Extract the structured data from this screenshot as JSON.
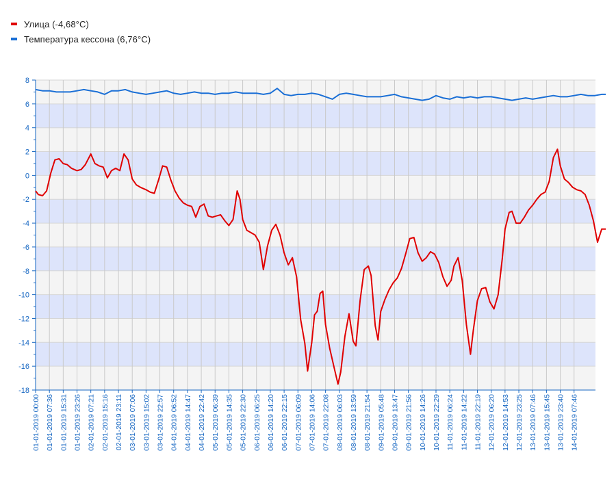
{
  "legend": [
    {
      "label": "Улица (-4,68°C)",
      "color": "#e00000"
    },
    {
      "label": "Температура кессона (6,76°C)",
      "color": "#1a6fd6"
    }
  ],
  "chart_data": {
    "type": "line",
    "ylim": [
      -18,
      8
    ],
    "y_ticks": [
      8,
      6,
      4,
      2,
      0,
      -2,
      -4,
      -6,
      -8,
      -10,
      -12,
      -14,
      -16,
      -18
    ],
    "x_tick_labels": [
      "01-01-2019 00:00",
      "01-01-2019 07:36",
      "01-01-2019 15:31",
      "01-01-2019 23:26",
      "02-01-2019 07:21",
      "02-01-2019 15:16",
      "02-01-2019 23:11",
      "03-01-2019 07:06",
      "03-01-2019 15:02",
      "03-01-2019 22:57",
      "04-01-2019 06:52",
      "04-01-2019 14:47",
      "04-01-2019 22:42",
      "05-01-2019 06:39",
      "05-01-2019 14:35",
      "05-01-2019 22:30",
      "06-01-2019 06:25",
      "06-01-2019 14:20",
      "06-01-2019 22:15",
      "07-01-2019 06:09",
      "07-01-2019 14:06",
      "07-01-2019 22:08",
      "08-01-2019 06:03",
      "08-01-2019 13:59",
      "08-01-2019 21:54",
      "09-01-2019 05:48",
      "09-01-2019 13:47",
      "09-01-2019 21:56",
      "10-01-2019 14:26",
      "10-01-2019 22:29",
      "11-01-2019 06:24",
      "11-01-2019 14:22",
      "11-01-2019 22:19",
      "12-01-2019 06:20",
      "12-01-2019 14:53",
      "12-01-2019 23:25",
      "13-01-2019 07:46",
      "13-01-2019 15:45",
      "13-01-2019 23:40",
      "14-01-2019 07:46"
    ],
    "grid": true,
    "series": [
      {
        "name": "Улица (-4,68°C)",
        "color": "#e00000",
        "points": [
          [
            0,
            -1.3
          ],
          [
            0.2,
            -1.6
          ],
          [
            0.5,
            -1.7
          ],
          [
            0.8,
            -1.3
          ],
          [
            1.1,
            0.2
          ],
          [
            1.4,
            1.3
          ],
          [
            1.7,
            1.4
          ],
          [
            2.0,
            1.0
          ],
          [
            2.3,
            0.9
          ],
          [
            2.6,
            0.6
          ],
          [
            3.0,
            0.4
          ],
          [
            3.3,
            0.5
          ],
          [
            3.6,
            0.9
          ],
          [
            4.0,
            1.8
          ],
          [
            4.3,
            1.0
          ],
          [
            4.6,
            0.8
          ],
          [
            4.9,
            0.7
          ],
          [
            5.2,
            -0.2
          ],
          [
            5.5,
            0.4
          ],
          [
            5.8,
            0.6
          ],
          [
            6.1,
            0.4
          ],
          [
            6.4,
            1.8
          ],
          [
            6.7,
            1.3
          ],
          [
            7.0,
            -0.3
          ],
          [
            7.3,
            -0.8
          ],
          [
            7.6,
            -1.0
          ],
          [
            8.0,
            -1.2
          ],
          [
            8.3,
            -1.4
          ],
          [
            8.6,
            -1.5
          ],
          [
            8.9,
            -0.4
          ],
          [
            9.2,
            0.8
          ],
          [
            9.5,
            0.7
          ],
          [
            9.8,
            -0.4
          ],
          [
            10.1,
            -1.3
          ],
          [
            10.4,
            -1.9
          ],
          [
            10.7,
            -2.3
          ],
          [
            11.0,
            -2.5
          ],
          [
            11.3,
            -2.6
          ],
          [
            11.6,
            -3.5
          ],
          [
            11.9,
            -2.6
          ],
          [
            12.2,
            -2.4
          ],
          [
            12.5,
            -3.4
          ],
          [
            12.8,
            -3.5
          ],
          [
            13.1,
            -3.4
          ],
          [
            13.4,
            -3.3
          ],
          [
            13.7,
            -3.8
          ],
          [
            14.0,
            -4.2
          ],
          [
            14.3,
            -3.7
          ],
          [
            14.6,
            -1.3
          ],
          [
            14.8,
            -2.0
          ],
          [
            15.0,
            -3.7
          ],
          [
            15.3,
            -4.6
          ],
          [
            15.6,
            -4.8
          ],
          [
            15.9,
            -5.0
          ],
          [
            16.2,
            -5.6
          ],
          [
            16.5,
            -7.9
          ],
          [
            16.8,
            -5.9
          ],
          [
            17.1,
            -4.6
          ],
          [
            17.4,
            -4.1
          ],
          [
            17.7,
            -5.0
          ],
          [
            18.0,
            -6.5
          ],
          [
            18.3,
            -7.5
          ],
          [
            18.6,
            -6.9
          ],
          [
            18.9,
            -8.5
          ],
          [
            19.2,
            -12.1
          ],
          [
            19.5,
            -14.1
          ],
          [
            19.7,
            -16.4
          ],
          [
            20.0,
            -14.0
          ],
          [
            20.2,
            -11.7
          ],
          [
            20.4,
            -11.4
          ],
          [
            20.6,
            -9.9
          ],
          [
            20.8,
            -9.7
          ],
          [
            21.0,
            -12.5
          ],
          [
            21.3,
            -14.5
          ],
          [
            21.6,
            -16.0
          ],
          [
            21.9,
            -17.5
          ],
          [
            22.1,
            -16.5
          ],
          [
            22.4,
            -13.5
          ],
          [
            22.7,
            -11.6
          ],
          [
            23.0,
            -13.9
          ],
          [
            23.2,
            -14.3
          ],
          [
            23.5,
            -10.5
          ],
          [
            23.8,
            -7.9
          ],
          [
            24.1,
            -7.6
          ],
          [
            24.3,
            -8.4
          ],
          [
            24.6,
            -12.6
          ],
          [
            24.8,
            -13.8
          ],
          [
            25.0,
            -11.4
          ],
          [
            25.3,
            -10.4
          ],
          [
            25.6,
            -9.6
          ],
          [
            25.9,
            -9.0
          ],
          [
            26.2,
            -8.6
          ],
          [
            26.5,
            -7.8
          ],
          [
            26.8,
            -6.6
          ],
          [
            27.1,
            -5.3
          ],
          [
            27.4,
            -5.2
          ],
          [
            27.7,
            -6.5
          ],
          [
            28.0,
            -7.2
          ],
          [
            28.3,
            -6.9
          ],
          [
            28.6,
            -6.4
          ],
          [
            28.9,
            -6.6
          ],
          [
            29.2,
            -7.3
          ],
          [
            29.5,
            -8.5
          ],
          [
            29.8,
            -9.3
          ],
          [
            30.1,
            -8.8
          ],
          [
            30.3,
            -7.6
          ],
          [
            30.6,
            -6.9
          ],
          [
            30.9,
            -8.8
          ],
          [
            31.2,
            -12.5
          ],
          [
            31.5,
            -15.0
          ],
          [
            31.7,
            -13.0
          ],
          [
            32.0,
            -10.5
          ],
          [
            32.3,
            -9.5
          ],
          [
            32.6,
            -9.4
          ],
          [
            32.9,
            -10.6
          ],
          [
            33.2,
            -11.2
          ],
          [
            33.5,
            -10.0
          ],
          [
            33.8,
            -7.0
          ],
          [
            34.0,
            -4.5
          ],
          [
            34.3,
            -3.1
          ],
          [
            34.5,
            -3.0
          ],
          [
            34.8,
            -4.0
          ],
          [
            35.1,
            -4.0
          ],
          [
            35.4,
            -3.5
          ],
          [
            35.7,
            -2.9
          ],
          [
            36.0,
            -2.5
          ],
          [
            36.3,
            -2.0
          ],
          [
            36.6,
            -1.6
          ],
          [
            36.9,
            -1.4
          ],
          [
            37.2,
            -0.5
          ],
          [
            37.5,
            1.5
          ],
          [
            37.8,
            2.2
          ],
          [
            38.0,
            0.8
          ],
          [
            38.3,
            -0.3
          ],
          [
            38.6,
            -0.6
          ],
          [
            38.9,
            -1.0
          ],
          [
            39.2,
            -1.2
          ],
          [
            39.5,
            -1.3
          ],
          [
            39.8,
            -1.6
          ],
          [
            40.1,
            -2.5
          ],
          [
            40.4,
            -3.8
          ],
          [
            40.7,
            -5.6
          ],
          [
            41.0,
            -4.5
          ],
          [
            41.3,
            -4.5
          ]
        ]
      },
      {
        "name": "Температура кессона (6,76°C)",
        "color": "#1a6fd6",
        "points": [
          [
            0,
            7.2
          ],
          [
            0.5,
            7.1
          ],
          [
            1.0,
            7.1
          ],
          [
            1.5,
            7.0
          ],
          [
            2.0,
            7.0
          ],
          [
            2.5,
            7.0
          ],
          [
            3.0,
            7.1
          ],
          [
            3.5,
            7.2
          ],
          [
            4.0,
            7.1
          ],
          [
            4.5,
            7.0
          ],
          [
            5.0,
            6.8
          ],
          [
            5.5,
            7.1
          ],
          [
            6.0,
            7.1
          ],
          [
            6.5,
            7.2
          ],
          [
            7.0,
            7.0
          ],
          [
            7.5,
            6.9
          ],
          [
            8.0,
            6.8
          ],
          [
            8.5,
            6.9
          ],
          [
            9.0,
            7.0
          ],
          [
            9.5,
            7.1
          ],
          [
            10.0,
            6.9
          ],
          [
            10.5,
            6.8
          ],
          [
            11.0,
            6.9
          ],
          [
            11.5,
            7.0
          ],
          [
            12.0,
            6.9
          ],
          [
            12.5,
            6.9
          ],
          [
            13.0,
            6.8
          ],
          [
            13.5,
            6.9
          ],
          [
            14.0,
            6.9
          ],
          [
            14.5,
            7.0
          ],
          [
            15.0,
            6.9
          ],
          [
            15.5,
            6.9
          ],
          [
            16.0,
            6.9
          ],
          [
            16.5,
            6.8
          ],
          [
            17.0,
            6.9
          ],
          [
            17.5,
            7.3
          ],
          [
            18.0,
            6.8
          ],
          [
            18.5,
            6.7
          ],
          [
            19.0,
            6.8
          ],
          [
            19.5,
            6.8
          ],
          [
            20.0,
            6.9
          ],
          [
            20.5,
            6.8
          ],
          [
            21.0,
            6.6
          ],
          [
            21.5,
            6.4
          ],
          [
            22.0,
            6.8
          ],
          [
            22.5,
            6.9
          ],
          [
            23.0,
            6.8
          ],
          [
            23.5,
            6.7
          ],
          [
            24.0,
            6.6
          ],
          [
            24.5,
            6.6
          ],
          [
            25.0,
            6.6
          ],
          [
            25.5,
            6.7
          ],
          [
            26.0,
            6.8
          ],
          [
            26.5,
            6.6
          ],
          [
            27.0,
            6.5
          ],
          [
            27.5,
            6.4
          ],
          [
            28.0,
            6.3
          ],
          [
            28.5,
            6.4
          ],
          [
            29.0,
            6.7
          ],
          [
            29.5,
            6.5
          ],
          [
            30.0,
            6.4
          ],
          [
            30.5,
            6.6
          ],
          [
            31.0,
            6.5
          ],
          [
            31.5,
            6.6
          ],
          [
            32.0,
            6.5
          ],
          [
            32.5,
            6.6
          ],
          [
            33.0,
            6.6
          ],
          [
            33.5,
            6.5
          ],
          [
            34.0,
            6.4
          ],
          [
            34.5,
            6.3
          ],
          [
            35.0,
            6.4
          ],
          [
            35.5,
            6.5
          ],
          [
            36.0,
            6.4
          ],
          [
            36.5,
            6.5
          ],
          [
            37.0,
            6.6
          ],
          [
            37.5,
            6.7
          ],
          [
            38.0,
            6.6
          ],
          [
            38.5,
            6.6
          ],
          [
            39.0,
            6.7
          ],
          [
            39.5,
            6.8
          ],
          [
            40.0,
            6.7
          ],
          [
            40.5,
            6.7
          ],
          [
            41.0,
            6.8
          ],
          [
            41.3,
            6.8
          ]
        ]
      }
    ]
  }
}
